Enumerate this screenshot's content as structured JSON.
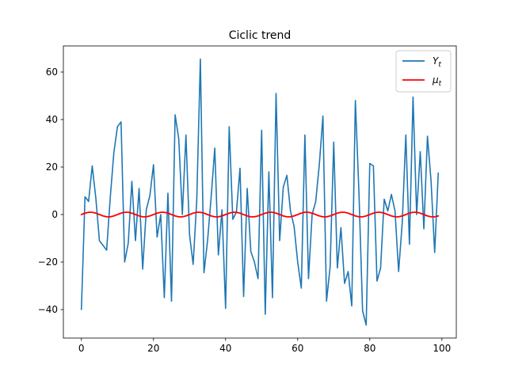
{
  "chart_data": {
    "type": "line",
    "title": "Ciclic trend",
    "xlabel": "",
    "ylabel": "",
    "xlim": [
      -5,
      104
    ],
    "ylim": [
      -52,
      71
    ],
    "x_ticks": [
      0,
      20,
      40,
      60,
      80,
      100
    ],
    "y_ticks": [
      -40,
      -20,
      0,
      20,
      40,
      60
    ],
    "grid": false,
    "legend_position": "top-right",
    "x": [
      0,
      1,
      2,
      3,
      4,
      5,
      6,
      7,
      8,
      9,
      10,
      11,
      12,
      13,
      14,
      15,
      16,
      17,
      18,
      19,
      20,
      21,
      22,
      23,
      24,
      25,
      26,
      27,
      28,
      29,
      30,
      31,
      32,
      33,
      34,
      35,
      36,
      37,
      38,
      39,
      40,
      41,
      42,
      43,
      44,
      45,
      46,
      47,
      48,
      49,
      50,
      51,
      52,
      53,
      54,
      55,
      56,
      57,
      58,
      59,
      60,
      61,
      62,
      63,
      64,
      65,
      66,
      67,
      68,
      69,
      70,
      71,
      72,
      73,
      74,
      75,
      76,
      77,
      78,
      79,
      80,
      81,
      82,
      83,
      84,
      85,
      86,
      87,
      88,
      89,
      90,
      91,
      92,
      93,
      94,
      95,
      96,
      97,
      98,
      99
    ],
    "series": [
      {
        "name": "Y_t",
        "label_base": "Y",
        "label_sub": "t",
        "color": "#1f77b4",
        "values": [
          -40,
          7.5,
          5.5,
          20.5,
          7,
          -11,
          -13,
          -15,
          7,
          26,
          37,
          39,
          -20,
          -12,
          14,
          -11,
          11,
          -23,
          2,
          8,
          21,
          -9.5,
          0,
          -35,
          9,
          -36.5,
          42,
          32,
          0,
          33.5,
          -8.5,
          -21,
          6,
          65.5,
          -24.5,
          -11,
          7.5,
          28,
          -17,
          2,
          -39.5,
          37,
          -2,
          1,
          19.5,
          -34.5,
          11,
          -15.5,
          -20,
          -27,
          35.5,
          -42,
          18,
          -35,
          51,
          -11,
          11.5,
          16.5,
          1.5,
          -5,
          -20,
          -31,
          33.5,
          -27,
          0,
          5.5,
          21,
          41.5,
          -36.5,
          -22,
          30.5,
          -22.5,
          -5.5,
          -29,
          -24,
          -38.5,
          48,
          9,
          -40.5,
          -46.5,
          21.5,
          20.5,
          -28,
          -22.5,
          6.5,
          1.5,
          8.5,
          1.5,
          -24,
          -3.5,
          33.5,
          -12.5,
          49.5,
          0,
          26.5,
          -6,
          33,
          14,
          -16,
          17.5
        ]
      },
      {
        "name": "mu_t",
        "label_base": "μ",
        "label_sub": "t",
        "color": "#ff0000",
        "values": [
          0,
          0.59,
          0.95,
          0.95,
          0.59,
          0,
          -0.59,
          -0.95,
          -0.95,
          -0.59,
          0,
          0.59,
          0.95,
          0.95,
          0.59,
          0,
          -0.59,
          -0.95,
          -0.95,
          -0.59,
          0,
          0.59,
          0.95,
          0.95,
          0.59,
          0,
          -0.59,
          -0.95,
          -0.95,
          -0.59,
          0,
          0.59,
          0.95,
          0.95,
          0.59,
          0,
          -0.59,
          -0.95,
          -0.95,
          -0.59,
          0,
          0.59,
          0.95,
          0.95,
          0.59,
          0,
          -0.59,
          -0.95,
          -0.95,
          -0.59,
          0,
          0.59,
          0.95,
          0.95,
          0.59,
          0,
          -0.59,
          -0.95,
          -0.95,
          -0.59,
          0,
          0.59,
          0.95,
          0.95,
          0.59,
          0,
          -0.59,
          -0.95,
          -0.95,
          -0.59,
          0,
          0.59,
          0.95,
          0.95,
          0.59,
          0,
          -0.59,
          -0.95,
          -0.95,
          -0.59,
          0,
          0.59,
          0.95,
          0.95,
          0.59,
          0,
          -0.59,
          -0.95,
          -0.95,
          -0.59,
          0,
          0.59,
          0.95,
          0.95,
          0.59,
          0,
          -0.59,
          -0.95,
          -0.95,
          -0.59
        ]
      }
    ]
  }
}
